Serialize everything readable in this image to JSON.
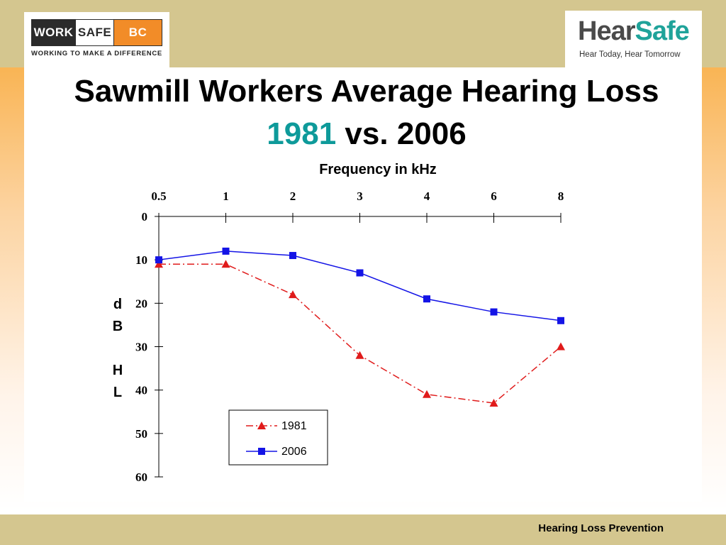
{
  "logos": {
    "worksafe": {
      "work": "WORK",
      "safe": "SAFE",
      "bc": "BC",
      "tagline": "WORKING TO MAKE A DIFFERENCE",
      "accent": "#f28c28"
    },
    "hearsafe": {
      "hear": "Hear",
      "safe": "Safe",
      "tagline": "Hear Today, Hear Tomorrow",
      "accent": "#1fa39a"
    }
  },
  "title": {
    "line1": "Sawmill Workers Average Hearing Loss",
    "year_a": "1981",
    "vs": "vs. 2006"
  },
  "footer": "Hearing Loss Prevention",
  "chart_data": {
    "type": "line",
    "xlabel": "Frequency in kHz",
    "ylabel_lines": [
      "d",
      "B",
      "",
      "H",
      "L"
    ],
    "x_position": "top",
    "y_inverted": true,
    "categories": [
      "0.5",
      "1",
      "2",
      "3",
      "4",
      "6",
      "8"
    ],
    "y_ticks": [
      "0",
      "10",
      "20",
      "30",
      "40",
      "50",
      "60"
    ],
    "ylim": [
      0,
      60
    ],
    "grid": false,
    "legend_position": "bottom-center",
    "series": [
      {
        "name": "1981",
        "values": [
          11,
          11,
          18,
          32,
          41,
          43,
          30
        ],
        "color": "#e01b1b",
        "marker": "triangle",
        "line": "dash-dot"
      },
      {
        "name": "2006",
        "values": [
          10,
          8,
          9,
          13,
          19,
          22,
          24
        ],
        "color": "#1414e6",
        "marker": "square",
        "line": "solid"
      }
    ]
  }
}
